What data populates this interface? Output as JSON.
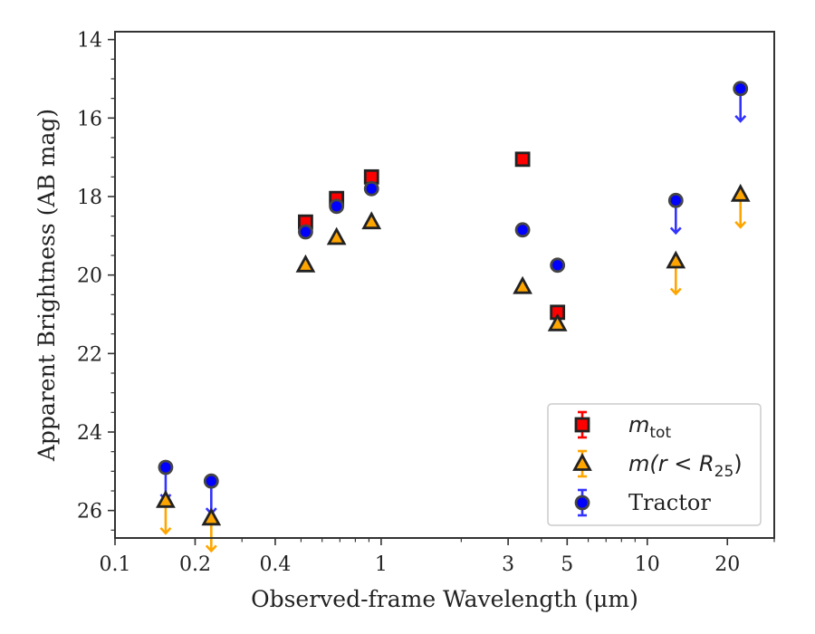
{
  "chart_data": {
    "type": "scatter",
    "xscale": "log",
    "yaxis_inverted": true,
    "xlim": [
      0.1,
      30
    ],
    "ylim": [
      26.7,
      13.8
    ],
    "xlabel": "Observed-frame Wavelength (μm)",
    "ylabel": "Apparent Brightness (AB mag)",
    "xticks": [
      {
        "value": 0.1,
        "label": "0.1"
      },
      {
        "value": 0.2,
        "label": "0.2"
      },
      {
        "value": 0.4,
        "label": "0.4"
      },
      {
        "value": 1,
        "label": "1"
      },
      {
        "value": 3,
        "label": "3"
      },
      {
        "value": 5,
        "label": "5"
      },
      {
        "value": 10,
        "label": "10"
      },
      {
        "value": 20,
        "label": "20"
      }
    ],
    "yticks": [
      14,
      16,
      18,
      20,
      22,
      24,
      26
    ],
    "legend_position": "lower right",
    "series": [
      {
        "name": "m_tot",
        "legend_label_main": "m",
        "legend_label_sub": "tot",
        "marker": "square",
        "color": "#ff0000",
        "errcolor": "#ff0000",
        "points": [
          {
            "x": 0.52,
            "y": 18.65,
            "upper_limit": false
          },
          {
            "x": 0.68,
            "y": 18.05,
            "upper_limit": false
          },
          {
            "x": 0.92,
            "y": 17.5,
            "upper_limit": false
          },
          {
            "x": 3.4,
            "y": 17.05,
            "upper_limit": false
          },
          {
            "x": 4.6,
            "y": 20.95,
            "upper_limit": false
          }
        ]
      },
      {
        "name": "m(r<R_25)",
        "legend_label_main": "m(r < R",
        "legend_label_sub": "25",
        "legend_label_end": ")",
        "marker": "triangle",
        "color": "#ffa500",
        "errcolor": "#ffa500",
        "points": [
          {
            "x": 0.155,
            "y": 25.75,
            "upper_limit": true
          },
          {
            "x": 0.23,
            "y": 26.2,
            "upper_limit": true
          },
          {
            "x": 0.52,
            "y": 19.75,
            "upper_limit": false
          },
          {
            "x": 0.68,
            "y": 19.05,
            "upper_limit": false
          },
          {
            "x": 0.92,
            "y": 18.65,
            "upper_limit": false
          },
          {
            "x": 3.4,
            "y": 20.3,
            "upper_limit": false
          },
          {
            "x": 4.6,
            "y": 21.25,
            "upper_limit": false
          },
          {
            "x": 12.8,
            "y": 19.65,
            "upper_limit": true
          },
          {
            "x": 22.4,
            "y": 17.95,
            "upper_limit": true
          }
        ]
      },
      {
        "name": "Tractor",
        "legend_label_main": "Tractor",
        "marker": "circle",
        "color": "#0000ff",
        "errcolor": "#3333ff",
        "points": [
          {
            "x": 0.155,
            "y": 24.9,
            "upper_limit": true
          },
          {
            "x": 0.23,
            "y": 25.25,
            "upper_limit": true
          },
          {
            "x": 0.52,
            "y": 18.9,
            "upper_limit": false
          },
          {
            "x": 0.68,
            "y": 18.25,
            "upper_limit": false
          },
          {
            "x": 0.92,
            "y": 17.8,
            "upper_limit": false
          },
          {
            "x": 3.4,
            "y": 18.85,
            "upper_limit": false
          },
          {
            "x": 4.6,
            "y": 19.75,
            "upper_limit": false
          },
          {
            "x": 12.8,
            "y": 18.1,
            "upper_limit": true
          },
          {
            "x": 22.4,
            "y": 15.25,
            "upper_limit": true
          }
        ]
      }
    ]
  }
}
